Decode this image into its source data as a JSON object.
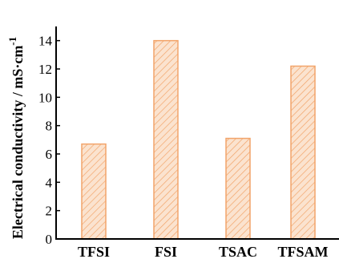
{
  "chart_data": {
    "type": "bar",
    "categories": [
      "TFSI",
      "FSI",
      "TSAC",
      "TFSAM"
    ],
    "values": [
      6.7,
      14.0,
      7.1,
      12.2
    ],
    "title": "",
    "xlabel": "",
    "ylabel": "Electrical conductivity / mS·cm",
    "ylabel_superscript": "-1",
    "ylim": [
      0,
      15
    ],
    "yticks": [
      0,
      2,
      4,
      6,
      8,
      10,
      12,
      14
    ],
    "grid": false,
    "bar_fill": "#fbe3cf",
    "bar_stroke": "#f2a46a",
    "bar_hatch": "#f2a46a"
  }
}
